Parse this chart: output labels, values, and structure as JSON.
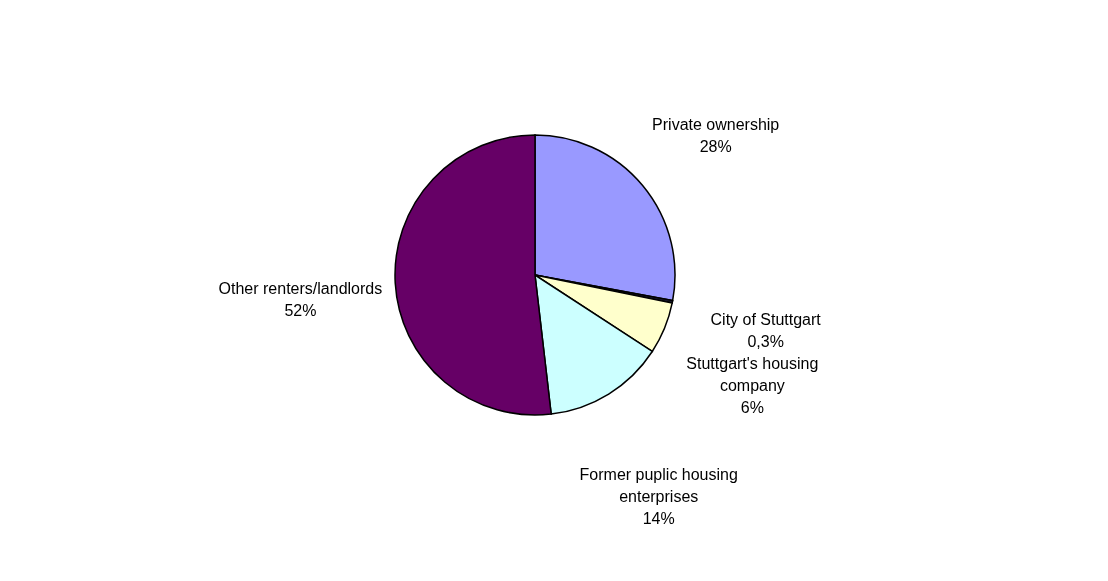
{
  "chart_data": {
    "type": "pie",
    "categories": [
      "Private ownership",
      "City of Stuttgart",
      "Stuttgart's housing company",
      "Former puplic housing enterprises",
      "Other renters/landlords"
    ],
    "values": [
      28,
      0.3,
      6,
      14,
      52
    ],
    "value_labels": [
      "28%",
      "0,3%",
      "6%",
      "14%",
      "52%"
    ],
    "colors": [
      "#9999ff",
      "#1a1a33",
      "#ffffcc",
      "#ccffff",
      "#660066"
    ],
    "legend": false
  }
}
